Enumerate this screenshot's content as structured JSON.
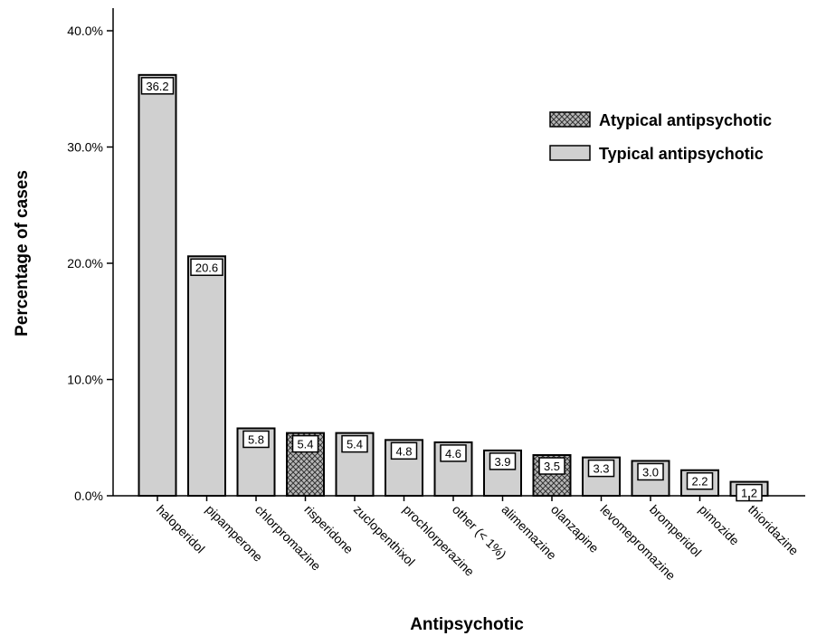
{
  "chart_data": {
    "type": "bar",
    "title": "",
    "xlabel": "Antipsychotic",
    "ylabel": "Percentage of cases",
    "ylim": [
      0,
      40
    ],
    "yticks": [
      0,
      10,
      20,
      30,
      40
    ],
    "ytick_labels": [
      "0.0%",
      "10.0%",
      "20.0%",
      "30.0%",
      "40.0%"
    ],
    "grid": false,
    "legend_position": "top-right",
    "categories": [
      "haloperidol",
      "pipamperone",
      "chlorpromazine",
      "risperidone",
      "zuclopenthixol",
      "prochlorperazine",
      "other (< 1%)",
      "alimemazine",
      "olanzapine",
      "levomepromazine",
      "bromperidol",
      "pimozide",
      "thioridazine"
    ],
    "values": [
      36.2,
      20.6,
      5.8,
      5.4,
      5.4,
      4.8,
      4.6,
      3.9,
      3.5,
      3.3,
      3.0,
      2.2,
      1.2
    ],
    "data_labels": [
      "36.2",
      "20.6",
      "5.8",
      "5.4",
      "5.4",
      "4.8",
      "4.6",
      "3.9",
      "3.5",
      "3.3",
      "3.0",
      "2.2",
      "1.2"
    ],
    "bar_types": [
      "typical",
      "typical",
      "typical",
      "atypical",
      "typical",
      "typical",
      "typical",
      "typical",
      "atypical",
      "typical",
      "typical",
      "typical",
      "typical"
    ],
    "series": [
      {
        "key": "atypical",
        "name": "Atypical antipsychotic",
        "fill": "crosshatch",
        "color": "#8c8c8c"
      },
      {
        "key": "typical",
        "name": "Typical antipsychotic",
        "fill": "solid",
        "color": "#d0d0d0"
      }
    ]
  }
}
